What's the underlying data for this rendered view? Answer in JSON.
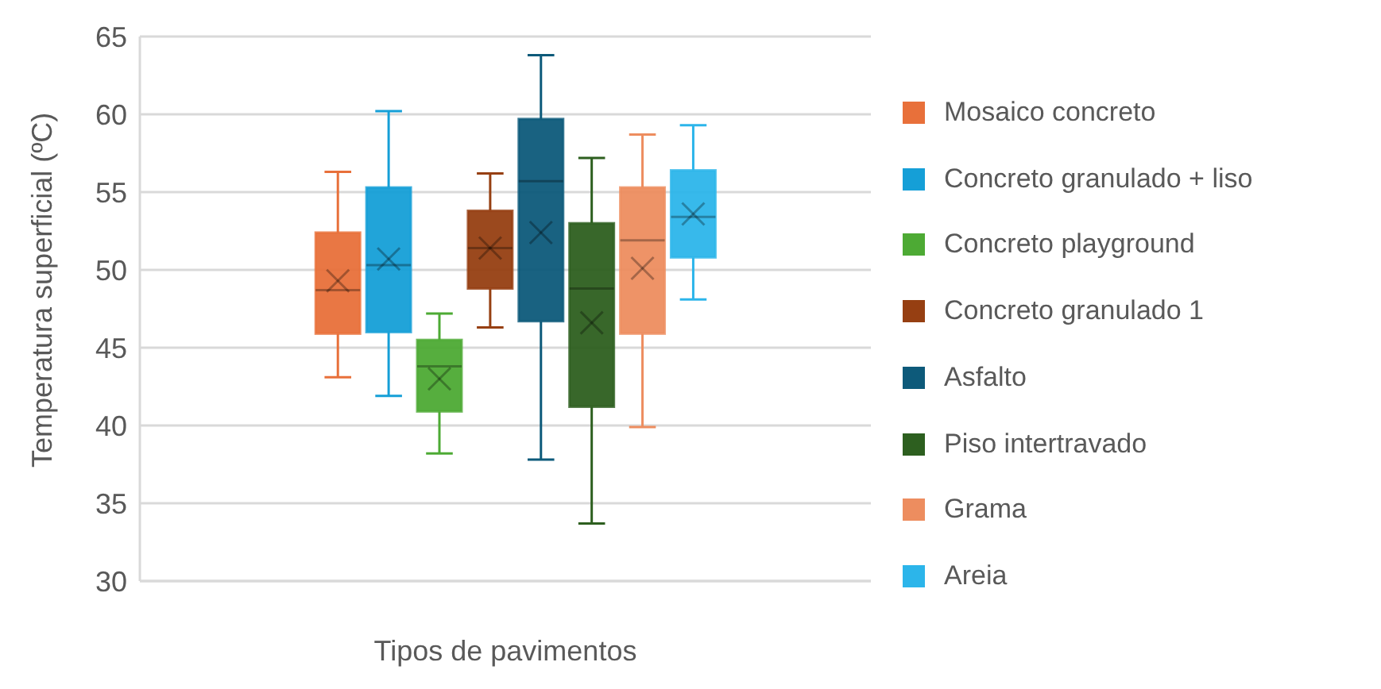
{
  "chart_data": {
    "type": "box",
    "xlabel": "Tipos de pavimentos",
    "ylabel": "Temperatura superficial (ºC)",
    "categories": [
      null
    ],
    "ylim": [
      30,
      65
    ],
    "yticks": [
      30,
      35,
      40,
      45,
      50,
      55,
      60,
      65
    ],
    "grid": "y",
    "legend": "right",
    "tick_labels": "y",
    "series": [
      {
        "name": "Mosaico concreto",
        "color": "#e8703a",
        "boxes": [
          {
            "low": 43.1,
            "q1": 45.9,
            "median": 48.7,
            "q3": 52.4,
            "high": 56.3,
            "mean": 49.3
          }
        ]
      },
      {
        "name": "Concreto granulado + liso",
        "color": "#159fd7",
        "boxes": [
          {
            "low": 41.9,
            "q1": 46.0,
            "median": 50.3,
            "q3": 55.3,
            "high": 60.2,
            "mean": 50.7
          }
        ]
      },
      {
        "name": "Concreto playground",
        "color": "#4daa34",
        "boxes": [
          {
            "low": 38.2,
            "q1": 40.9,
            "median": 43.8,
            "q3": 45.5,
            "high": 47.2,
            "mean": 43.0
          }
        ]
      },
      {
        "name": "Concreto granulado 1",
        "color": "#963f12",
        "boxes": [
          {
            "low": 46.3,
            "q1": 48.8,
            "median": 51.4,
            "q3": 53.8,
            "high": 56.2,
            "mean": 51.4
          }
        ]
      },
      {
        "name": "Asfalto",
        "color": "#0d5a7a",
        "boxes": [
          {
            "low": 37.8,
            "q1": 46.7,
            "median": 55.7,
            "q3": 59.7,
            "high": 63.8,
            "mean": 52.4
          }
        ]
      },
      {
        "name": "Piso intertravado",
        "color": "#2d5f1f",
        "boxes": [
          {
            "low": 33.7,
            "q1": 41.2,
            "median": 48.8,
            "q3": 53.0,
            "high": 57.2,
            "mean": 46.6
          }
        ]
      },
      {
        "name": "Grama",
        "color": "#ed8d5f",
        "boxes": [
          {
            "low": 39.9,
            "q1": 45.9,
            "median": 51.9,
            "q3": 55.3,
            "high": 58.7,
            "mean": 50.1
          }
        ]
      },
      {
        "name": "Areia",
        "color": "#2cb5ea",
        "boxes": [
          {
            "low": 48.1,
            "q1": 50.8,
            "median": 53.4,
            "q3": 56.4,
            "high": 59.3,
            "mean": 53.6
          }
        ]
      }
    ]
  }
}
